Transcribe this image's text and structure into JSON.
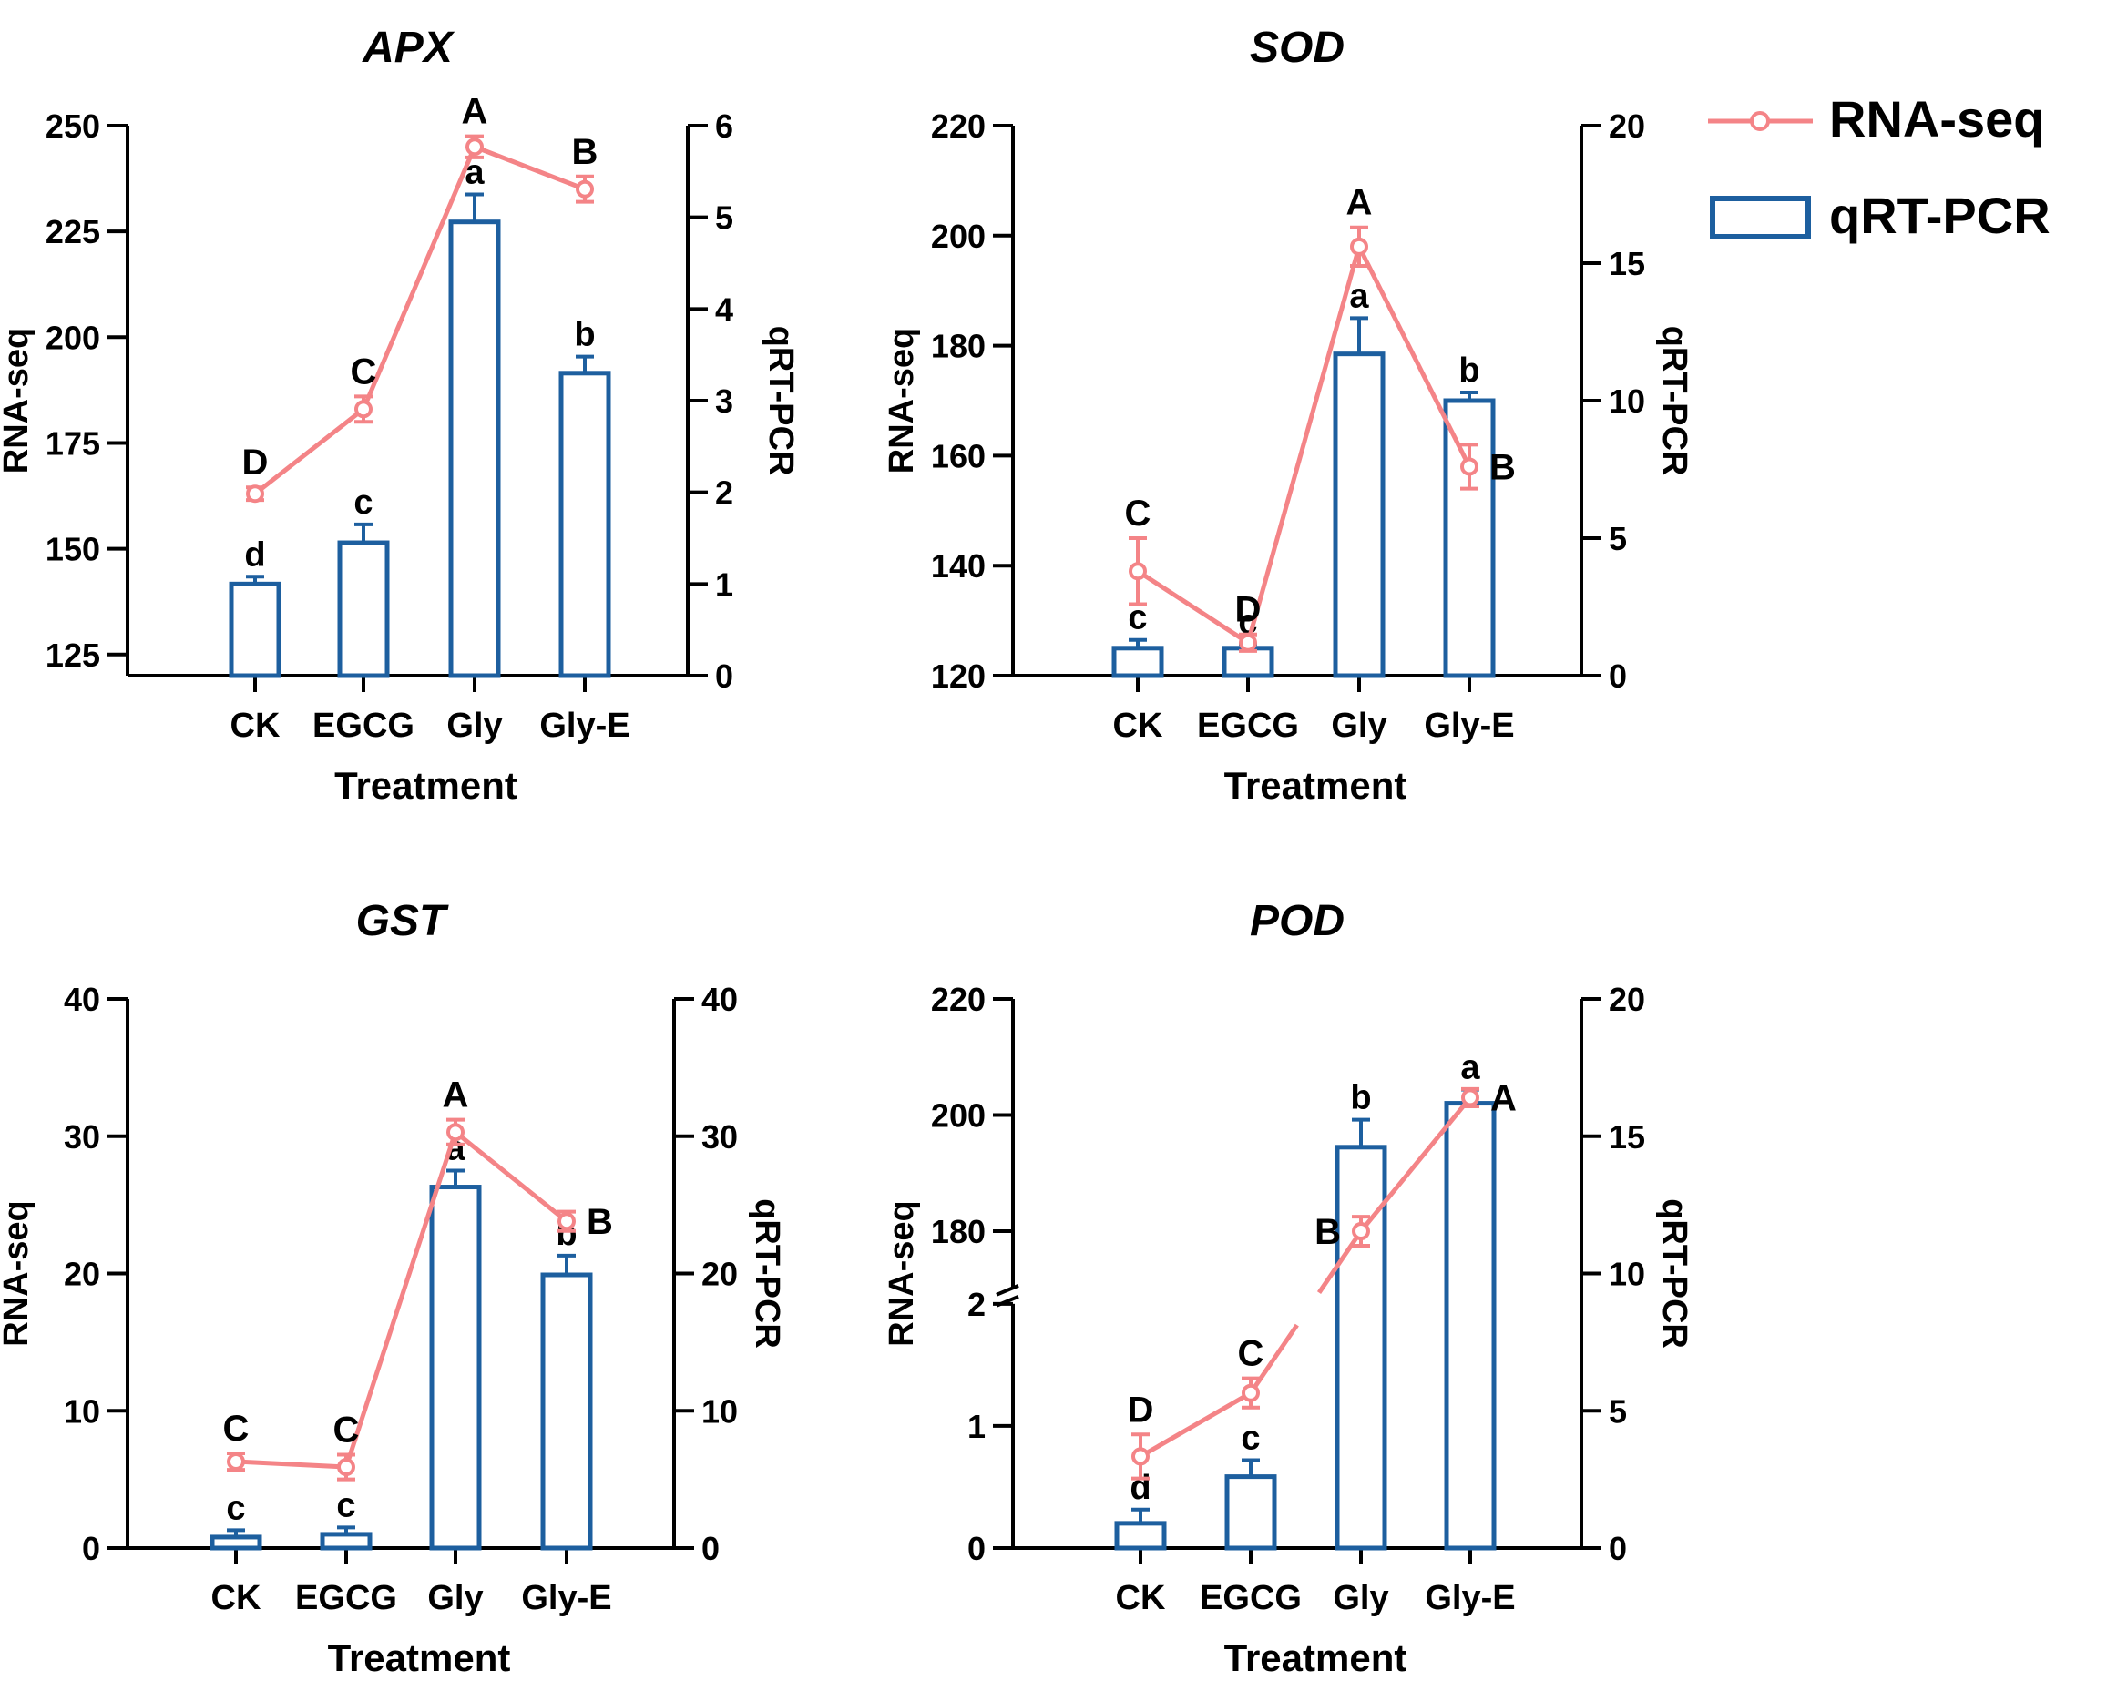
{
  "colors": {
    "rnaseq": "#f48487",
    "qrtpcr": "#1d5f9f",
    "axis": "#000000"
  },
  "legend": {
    "items": [
      {
        "label": "RNA-seq",
        "kind": "line-marker",
        "color": "#f48487"
      },
      {
        "label": "qRT-PCR",
        "kind": "open-bar",
        "color": "#1d5f9f"
      }
    ],
    "position": "top-right"
  },
  "chart_data": [
    {
      "type": "bar+line",
      "title": "APX",
      "xlabel": "Treatment",
      "ylabel_left": "RNA-seq",
      "ylabel_right": "qRT-PCR",
      "categories": [
        "CK",
        "EGCG",
        "Gly",
        "Gly-E"
      ],
      "left_axis": {
        "ylim": [
          120,
          250
        ],
        "ticks": [
          125,
          150,
          175,
          200,
          225,
          250
        ],
        "tick_labels": [
          "125",
          "150",
          "175",
          "200",
          "225",
          "250"
        ]
      },
      "right_axis": {
        "ylim": [
          0,
          6
        ],
        "ticks": [
          0,
          1,
          2,
          3,
          4,
          5,
          6
        ],
        "tick_labels": [
          "0",
          "1",
          "2",
          "3",
          "4",
          "5",
          "6"
        ]
      },
      "series": [
        {
          "name": "RNA-seq",
          "axis": "left",
          "values": [
            163,
            183,
            245,
            235
          ],
          "errors": [
            1.5,
            3,
            2.5,
            3
          ],
          "letters": [
            "D",
            "C",
            "A",
            "B"
          ],
          "letter_pos": [
            "above",
            "above",
            "above",
            "above"
          ]
        },
        {
          "name": "qRT-PCR",
          "axis": "right",
          "values": [
            1.0,
            1.45,
            4.95,
            3.3
          ],
          "errors": [
            0.08,
            0.2,
            0.3,
            0.18
          ],
          "letters": [
            "d",
            "c",
            "a",
            "b"
          ]
        }
      ]
    },
    {
      "type": "bar+line",
      "title": "SOD",
      "xlabel": "Treatment",
      "ylabel_left": "RNA-seq",
      "ylabel_right": "qRT-PCR",
      "categories": [
        "CK",
        "EGCG",
        "Gly",
        "Gly-E"
      ],
      "left_axis": {
        "ylim": [
          120,
          220
        ],
        "ticks": [
          120,
          140,
          160,
          180,
          200,
          220
        ],
        "tick_labels": [
          "120",
          "140",
          "160",
          "180",
          "200",
          "220"
        ]
      },
      "right_axis": {
        "ylim": [
          0,
          20
        ],
        "ticks": [
          0,
          5,
          10,
          15,
          20
        ],
        "tick_labels": [
          "0",
          "5",
          "10",
          "15",
          "20"
        ]
      },
      "series": [
        {
          "name": "RNA-seq",
          "axis": "left",
          "values": [
            139,
            126,
            198,
            158
          ],
          "errors": [
            6,
            1.5,
            3.5,
            4
          ],
          "letters": [
            "C",
            "D",
            "A",
            "B"
          ],
          "letter_pos": [
            "above",
            "above",
            "above",
            "right"
          ]
        },
        {
          "name": "qRT-PCR",
          "axis": "right",
          "values": [
            1.0,
            1.0,
            11.7,
            10.0
          ],
          "errors": [
            0.3,
            0.15,
            1.3,
            0.3
          ],
          "letters": [
            "c",
            "c",
            "a",
            "b"
          ]
        }
      ]
    },
    {
      "type": "bar+line",
      "title": "GST",
      "xlabel": "Treatment",
      "ylabel_left": "RNA-seq",
      "ylabel_right": "qRT-PCR",
      "categories": [
        "CK",
        "EGCG",
        "Gly",
        "Gly-E"
      ],
      "left_axis": {
        "ylim": [
          0,
          40
        ],
        "ticks": [
          0,
          10,
          20,
          30,
          40
        ],
        "tick_labels": [
          "0",
          "10",
          "20",
          "30",
          "40"
        ]
      },
      "right_axis": {
        "ylim": [
          0,
          40
        ],
        "ticks": [
          0,
          10,
          20,
          30,
          40
        ],
        "tick_labels": [
          "0",
          "10",
          "20",
          "30",
          "40"
        ]
      },
      "series": [
        {
          "name": "RNA-seq",
          "axis": "left",
          "values": [
            6.3,
            5.9,
            30.3,
            23.8
          ],
          "errors": [
            0.6,
            0.9,
            0.9,
            0.7
          ],
          "letters": [
            "C",
            "C",
            "A",
            "B"
          ],
          "letter_pos": [
            "above",
            "above",
            "above",
            "right"
          ]
        },
        {
          "name": "qRT-PCR",
          "axis": "right",
          "values": [
            0.8,
            1.0,
            26.3,
            19.9
          ],
          "errors": [
            0.5,
            0.5,
            1.2,
            1.4
          ],
          "letters": [
            "c",
            "c",
            "a",
            "b"
          ]
        }
      ]
    },
    {
      "type": "bar+line",
      "title": "POD",
      "xlabel": "Treatment",
      "ylabel_left": "RNA-seq",
      "ylabel_right": "qRT-PCR",
      "categories": [
        "CK",
        "EGCG",
        "Gly",
        "Gly-E"
      ],
      "left_axis": {
        "broken": true,
        "lower_range": [
          0,
          2
        ],
        "upper_range": [
          170,
          220
        ],
        "ticks": [
          0,
          1,
          2,
          180,
          200,
          220
        ],
        "tick_labels": [
          "0",
          "1",
          "2",
          "180",
          "200",
          "220"
        ]
      },
      "right_axis": {
        "ylim": [
          0,
          20
        ],
        "ticks": [
          0,
          5,
          10,
          15,
          20
        ],
        "tick_labels": [
          "0",
          "5",
          "10",
          "15",
          "20"
        ]
      },
      "series": [
        {
          "name": "RNA-seq",
          "axis": "left",
          "values": [
            0.75,
            1.27,
            180,
            203
          ],
          "errors": [
            0.18,
            0.12,
            2.5,
            1.5
          ],
          "letters": [
            "D",
            "C",
            "B",
            "A"
          ],
          "letter_pos": [
            "above",
            "above",
            "left",
            "right"
          ]
        },
        {
          "name": "qRT-PCR",
          "axis": "right",
          "values": [
            0.9,
            2.6,
            14.6,
            16.2
          ],
          "errors": [
            0.5,
            0.6,
            1.0,
            0.5
          ],
          "letters": [
            "d",
            "c",
            "b",
            "a"
          ]
        }
      ]
    }
  ]
}
